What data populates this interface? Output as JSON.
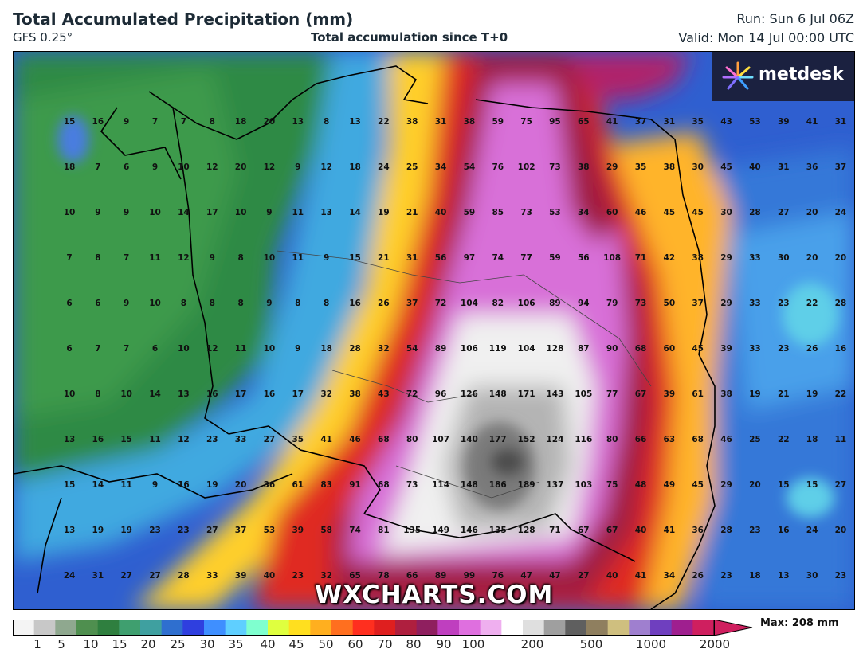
{
  "header": {
    "title": "Total Accumulated Precipitation (mm)",
    "model": "GFS 0.25°",
    "subtitle": "Total accumulation since T+0",
    "run": "Run: Sun 6 Jul 06Z",
    "valid": "Valid: Mon 14 Jul 00:00 UTC"
  },
  "logo": {
    "text": "metdesk"
  },
  "watermark": "WXCHARTS.COM",
  "grid_values": [
    [
      15,
      16,
      9,
      7,
      7,
      8,
      18,
      20,
      13,
      8,
      13,
      22,
      38,
      31,
      38,
      59,
      75,
      95,
      65,
      41,
      37,
      31,
      35,
      43,
      53,
      39,
      41,
      31
    ],
    [
      18,
      7,
      6,
      9,
      10,
      12,
      20,
      12,
      9,
      12,
      18,
      24,
      25,
      34,
      54,
      76,
      102,
      73,
      38,
      29,
      35,
      38,
      30,
      45,
      40,
      31,
      36,
      37
    ],
    [
      10,
      9,
      9,
      10,
      14,
      17,
      10,
      9,
      11,
      13,
      14,
      19,
      21,
      40,
      59,
      85,
      73,
      53,
      34,
      60,
      46,
      45,
      45,
      30,
      28,
      27,
      20,
      24
    ],
    [
      7,
      8,
      7,
      11,
      12,
      9,
      8,
      10,
      11,
      9,
      15,
      21,
      31,
      56,
      97,
      74,
      77,
      59,
      56,
      108,
      71,
      42,
      38,
      29,
      33,
      30,
      20,
      20
    ],
    [
      6,
      6,
      9,
      10,
      8,
      8,
      8,
      9,
      8,
      8,
      16,
      26,
      37,
      72,
      104,
      82,
      106,
      89,
      94,
      79,
      73,
      50,
      37,
      29,
      33,
      23,
      22,
      28
    ],
    [
      6,
      7,
      7,
      6,
      10,
      12,
      11,
      10,
      9,
      18,
      28,
      32,
      54,
      89,
      106,
      119,
      104,
      128,
      87,
      90,
      68,
      60,
      45,
      39,
      33,
      23,
      26,
      16
    ],
    [
      10,
      8,
      10,
      14,
      13,
      16,
      17,
      16,
      17,
      32,
      38,
      43,
      72,
      96,
      126,
      148,
      171,
      143,
      105,
      77,
      67,
      39,
      61,
      38,
      19,
      21,
      19,
      22
    ],
    [
      13,
      16,
      15,
      11,
      12,
      23,
      33,
      27,
      35,
      41,
      46,
      68,
      80,
      107,
      140,
      177,
      152,
      124,
      116,
      80,
      66,
      63,
      68,
      46,
      25,
      22,
      18,
      11
    ],
    [
      15,
      14,
      11,
      9,
      16,
      19,
      20,
      36,
      61,
      83,
      91,
      68,
      73,
      114,
      148,
      186,
      189,
      137,
      103,
      75,
      48,
      49,
      45,
      29,
      20,
      15,
      15,
      27
    ],
    [
      13,
      19,
      19,
      23,
      23,
      27,
      37,
      53,
      39,
      58,
      74,
      81,
      135,
      149,
      146,
      135,
      128,
      71,
      67,
      67,
      40,
      41,
      36,
      28,
      23,
      16,
      24,
      20
    ],
    [
      24,
      31,
      27,
      27,
      28,
      33,
      39,
      40,
      23,
      32,
      65,
      78,
      66,
      89,
      99,
      76,
      47,
      47,
      27,
      40,
      41,
      34,
      26,
      23,
      18,
      13,
      30,
      23
    ]
  ],
  "legend": {
    "ticks": [
      "1",
      "5",
      "10",
      "15",
      "20",
      "25",
      "30",
      "35",
      "40",
      "45",
      "50",
      "60",
      "70",
      "80",
      "90",
      "100",
      "200",
      "500",
      "1000",
      "2000"
    ],
    "max_label": "Max: 208 mm",
    "colors": [
      "#f4f4f4",
      "#c8c8c8",
      "#8fa88f",
      "#4f8f4f",
      "#2f7f3f",
      "#3f9f6f",
      "#3fa0a0",
      "#2f6fcf",
      "#2f3fdf",
      "#3f8fff",
      "#5fcfff",
      "#7fffcf",
      "#dfff3f",
      "#ffdf1f",
      "#ffaf1f",
      "#ff6f1f",
      "#ff2f1f",
      "#df1f1f",
      "#af1f3f",
      "#8f1f5f",
      "#bf3fbf",
      "#df6fdf",
      "#efafef",
      "#ffffff",
      "#dfdfdf",
      "#9f9f9f",
      "#5f5f5f",
      "#8f7f5f",
      "#cfbf7f",
      "#9f7fcf",
      "#6f3fbf",
      "#9f1f8f",
      "#cf1f5f"
    ]
  }
}
